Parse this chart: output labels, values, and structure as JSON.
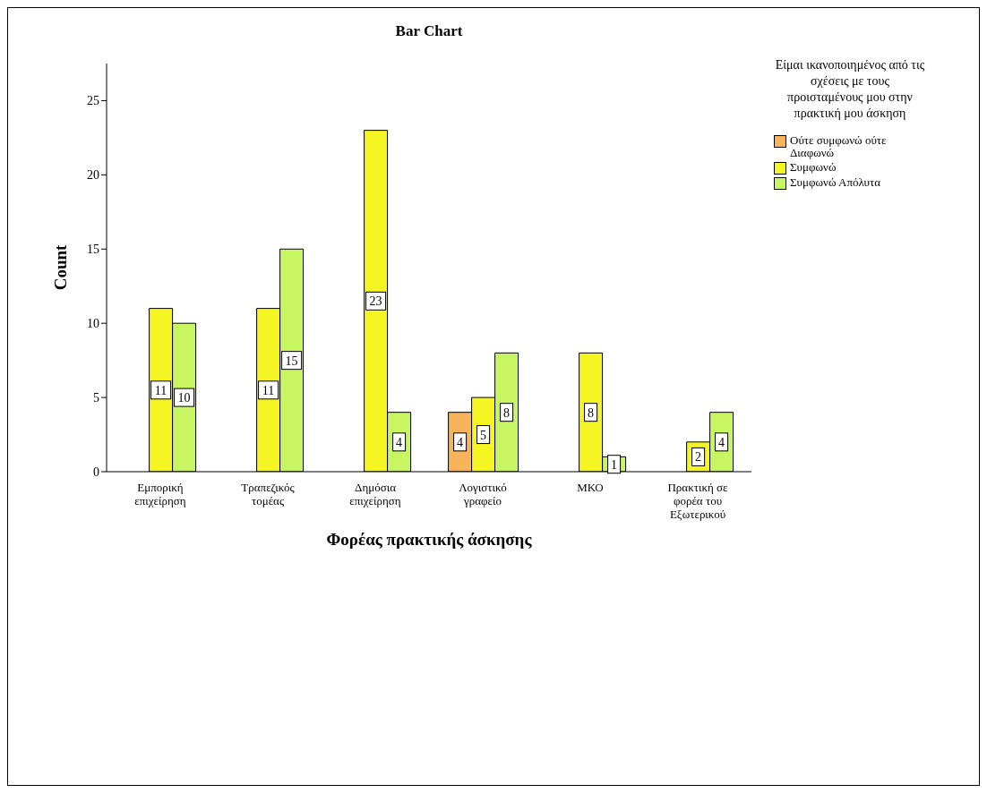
{
  "chart_data": {
    "type": "bar",
    "title": "Bar Chart",
    "xlabel": "Φορέας πρακτικής άσκησης",
    "ylabel": "Count",
    "legend_title": "Είμαι ικανοποιημένος από τις σχέσεις με τους προισταμένους μου στην πρακτική μου άσκηση",
    "categories": [
      "Εμπορική επιχείρηση",
      "Τραπεζικός τομέας",
      "Δημόσια επιχείρηση",
      "Λογιστικό γραφείο",
      "ΜΚΟ",
      "Πρακτική σε φορέα του Εξωτερικού"
    ],
    "series": [
      {
        "name": "Ούτε συμφωνώ ούτε Διαφωνώ",
        "color": "#f7b45a",
        "values": [
          null,
          null,
          null,
          4,
          null,
          null
        ]
      },
      {
        "name": "Συμφωνώ",
        "color": "#f5f523",
        "values": [
          11,
          11,
          23,
          5,
          8,
          2
        ]
      },
      {
        "name": "Συμφωνώ Απόλυτα",
        "color": "#c8f562",
        "values": [
          10,
          15,
          4,
          8,
          1,
          4
        ]
      }
    ],
    "ylim": [
      0,
      27.5
    ],
    "yticks": [
      0,
      5,
      10,
      15,
      20,
      25
    ],
    "grid": false,
    "legend": "top right",
    "data_labels": true
  }
}
